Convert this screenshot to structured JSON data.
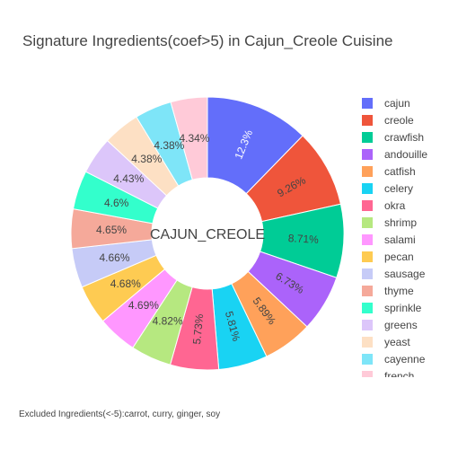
{
  "chart_data": {
    "type": "pie",
    "title": "Signature Ingredients(coef>5) in Cajun_Creole Cuisine",
    "hole_label": "CAJUN_CREOLE",
    "footnote": "Excluded Ingredients(<-5):carrot, curry, ginger, soy",
    "legend_placement": "right",
    "slices": [
      {
        "label": "cajun",
        "value": 12.3,
        "text": "12.3%",
        "color": "#636efa"
      },
      {
        "label": "creole",
        "value": 9.26,
        "text": "9.26%",
        "color": "#ef553b"
      },
      {
        "label": "crawfish",
        "value": 8.71,
        "text": "8.71%",
        "color": "#00cc96"
      },
      {
        "label": "andouille",
        "value": 6.73,
        "text": "6.73%",
        "color": "#ab63fa"
      },
      {
        "label": "catfish",
        "value": 5.89,
        "text": "5.89%",
        "color": "#ffa15a"
      },
      {
        "label": "celery",
        "value": 5.81,
        "text": "5.81%",
        "color": "#19d3f3"
      },
      {
        "label": "okra",
        "value": 5.73,
        "text": "5.73%",
        "color": "#ff6692"
      },
      {
        "label": "shrimp",
        "value": 4.82,
        "text": "4.82%",
        "color": "#b6e880"
      },
      {
        "label": "salami",
        "value": 4.69,
        "text": "4.69%",
        "color": "#ff97ff"
      },
      {
        "label": "pecan",
        "value": 4.68,
        "text": "4.68%",
        "color": "#fecb52"
      },
      {
        "label": "sausage",
        "value": 4.66,
        "text": "4.66%",
        "color": "#c6cbf7"
      },
      {
        "label": "thyme",
        "value": 4.65,
        "text": "4.65%",
        "color": "#f5a99a"
      },
      {
        "label": "sprinkle",
        "value": 4.6,
        "text": "4.6%",
        "color": "#33ffcc"
      },
      {
        "label": "greens",
        "value": 4.43,
        "text": "4.43%",
        "color": "#dcc6fa"
      },
      {
        "label": "yeast",
        "value": 4.38,
        "text": "4.38%",
        "color": "#fde0c4"
      },
      {
        "label": "cayenne",
        "value": 4.38,
        "text": "4.38%",
        "color": "#7ee5f8"
      },
      {
        "label": "french",
        "value": 4.34,
        "text": "4.34%",
        "color": "#ffcad8"
      }
    ]
  }
}
